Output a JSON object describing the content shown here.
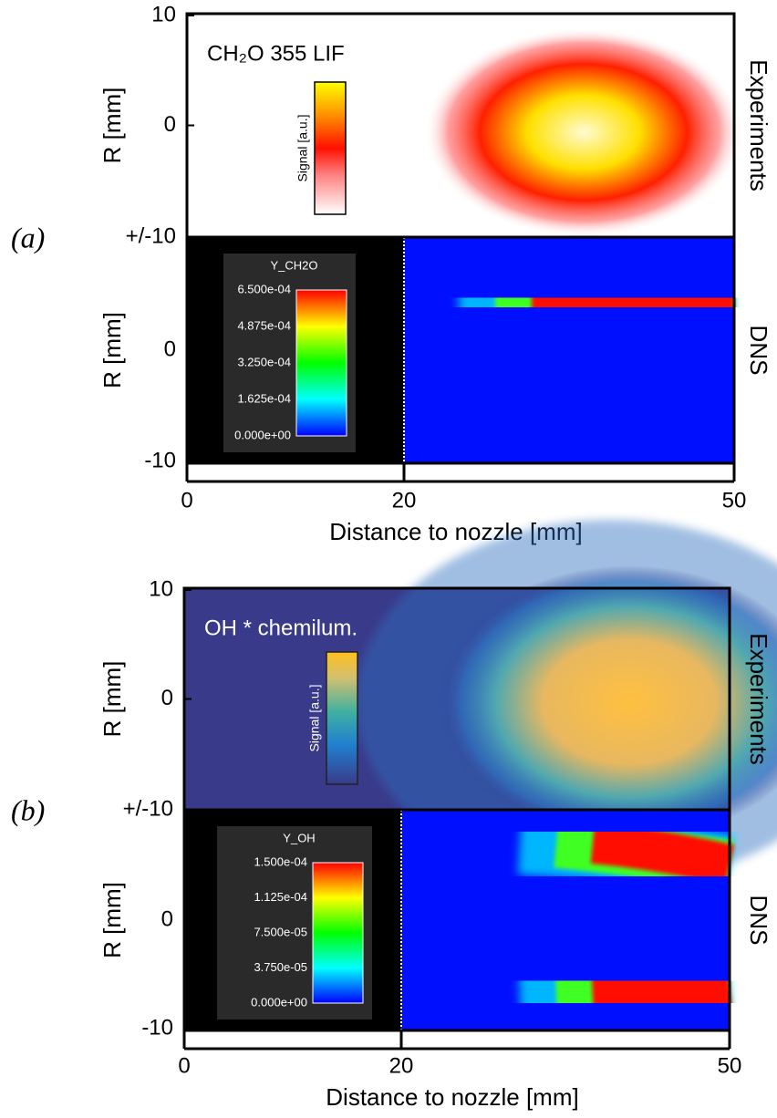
{
  "panels": [
    {
      "label": "(a)",
      "y_axis_label": "R [mm]",
      "y_ticks_top": [
        "10",
        "0"
      ],
      "y_tick_shared": "+/-10",
      "y_ticks_bottom": [
        "0",
        "-10"
      ],
      "x_ticks": [
        "0",
        "20",
        "50"
      ],
      "x_axis_label": "Distance to nozzle [mm]",
      "experiment": {
        "side_label": "Experiments",
        "title": "CH₂O 355 LIF",
        "colorbar_label": "Signal [a.u.]"
      },
      "dns": {
        "side_label": "DNS",
        "colorbar_title": "Y_CH2O",
        "colorbar_ticks": [
          "6.500e-04",
          "4.875e-04",
          "3.250e-04",
          "1.625e-04",
          "0.000e+00"
        ]
      }
    },
    {
      "label": "(b)",
      "y_axis_label": "R [mm]",
      "y_ticks_top": [
        "10",
        "0"
      ],
      "y_tick_shared": "+/-10",
      "y_ticks_bottom": [
        "0",
        "-10"
      ],
      "x_ticks": [
        "0",
        "20",
        "50"
      ],
      "x_axis_label": "Distance to nozzle [mm]",
      "experiment": {
        "side_label": "Experiments",
        "title": "OH * chemilum.",
        "colorbar_label": "Signal [a.u.]"
      },
      "dns": {
        "side_label": "DNS",
        "colorbar_title": "Y_OH",
        "colorbar_ticks": [
          "1.500e-04",
          "1.125e-04",
          "7.500e-05",
          "3.750e-05",
          "0.000e+00"
        ]
      }
    }
  ]
}
